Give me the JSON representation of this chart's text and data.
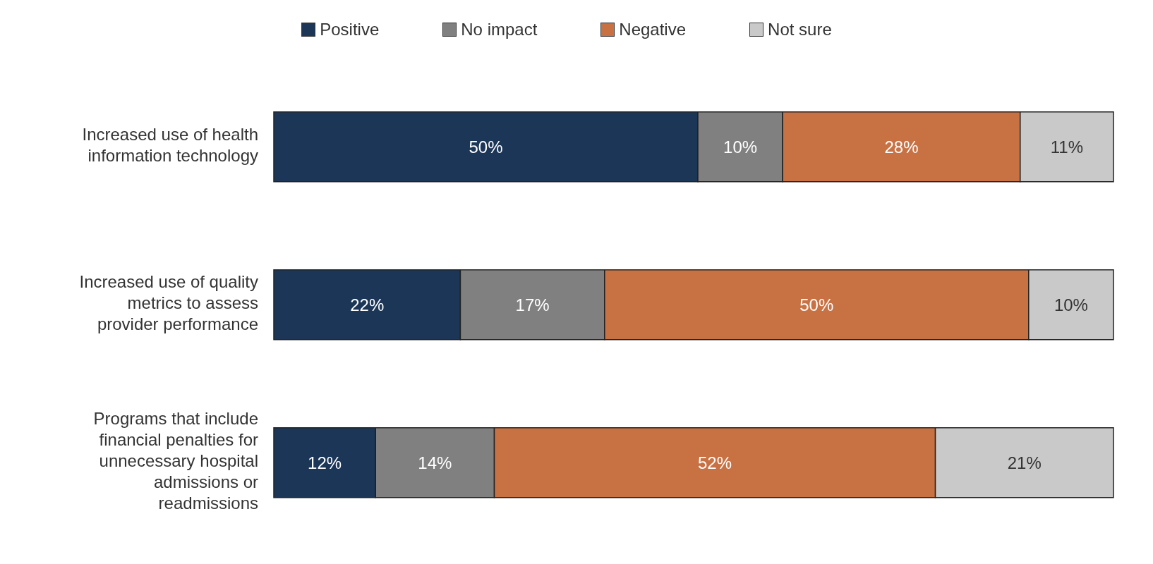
{
  "chart_data": {
    "type": "bar",
    "orientation": "horizontal",
    "stacked": true,
    "legend": "top",
    "grid": false,
    "categories": [
      "Increased use of health information technology",
      "Increased use of quality metrics to assess provider performance",
      "Programs that include financial penalties for unnecessary hospital admissions or readmissions"
    ],
    "series": [
      {
        "name": "Positive",
        "color": "#1c3657",
        "values": [
          50,
          22,
          12
        ],
        "value_labels": [
          "50%",
          "22%",
          "12%"
        ]
      },
      {
        "name": "No impact",
        "color": "#808080",
        "values": [
          10,
          17,
          14
        ],
        "value_labels": [
          "10%",
          "17%",
          "14%"
        ]
      },
      {
        "name": "Negative",
        "color": "#c87143",
        "values": [
          28,
          50,
          52
        ],
        "value_labels": [
          "28%",
          "50%",
          "52%"
        ]
      },
      {
        "name": "Not sure",
        "color": "#c9c9c9",
        "values": [
          11,
          10,
          21
        ],
        "value_labels": [
          "11%",
          "10%",
          "21%"
        ]
      }
    ]
  }
}
